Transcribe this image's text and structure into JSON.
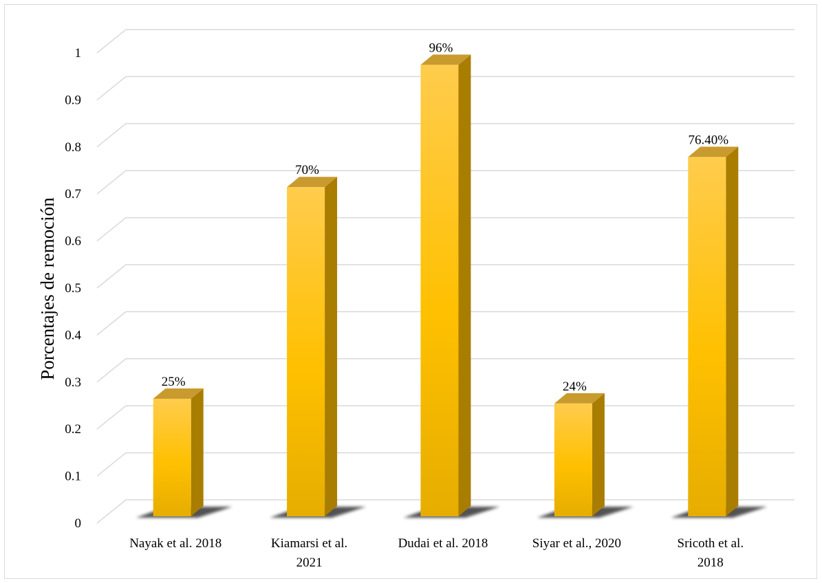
{
  "chart_data": {
    "type": "bar",
    "style": "3d-column",
    "categories": [
      [
        "Nayak et al. 2018"
      ],
      [
        "Kiamarsi et al.",
        "2021"
      ],
      [
        "Dudai et al. 2018"
      ],
      [
        "Siyar et al., 2020"
      ],
      [
        "Sricoth et al.",
        "2018"
      ]
    ],
    "values": [
      0.25,
      0.7,
      0.96,
      0.24,
      0.764
    ],
    "data_labels": [
      "25%",
      "70%",
      "96%",
      "24%",
      "76.40%"
    ],
    "title": "",
    "xlabel": "",
    "ylabel": "Porcentajes de remoción",
    "ylim": [
      0,
      1
    ],
    "yticks": [
      "0",
      "0.1",
      "0.2",
      "0.3",
      "0.4",
      "0.5",
      "0.6",
      "0.7",
      "0.8",
      "0.9",
      "1"
    ],
    "grid": true,
    "legend": "none",
    "colors": {
      "bar_front_light": "#ffcc4d",
      "bar_front_mid": "#ffc000",
      "bar_front_dark": "#e6ad00",
      "bar_side": "#a87d00",
      "bar_top": "#c99b2e",
      "shadow": "#404040",
      "grid": "#d9d9d9"
    }
  }
}
